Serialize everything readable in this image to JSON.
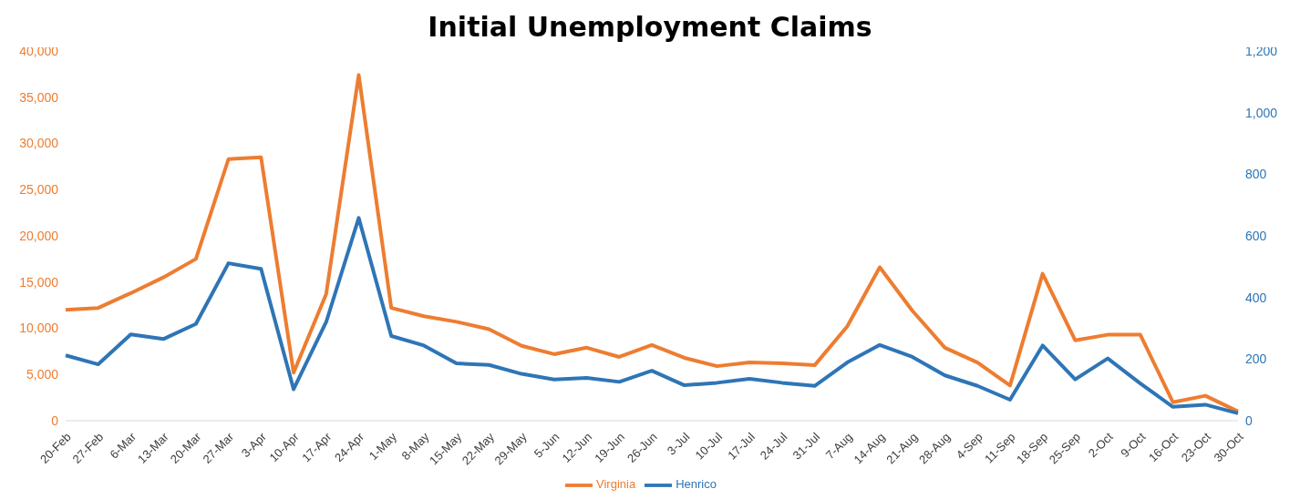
{
  "chart_data": {
    "type": "line",
    "title": "Initial Unemployment Claims",
    "categories": [
      "20-Feb",
      "27-Feb",
      "6-Mar",
      "13-Mar",
      "20-Mar",
      "27-Mar",
      "3-Apr",
      "10-Apr",
      "17-Apr",
      "24-Apr",
      "1-May",
      "8-May",
      "15-May",
      "22-May",
      "29-May",
      "5-Jun",
      "12-Jun",
      "19-Jun",
      "26-Jun",
      "3-Jul",
      "10-Jul",
      "17-Jul",
      "24-Jul",
      "31-Jul",
      "7-Aug",
      "14-Aug",
      "21-Aug",
      "28-Aug",
      "4-Sep",
      "11-Sep",
      "18-Sep",
      "25-Sep",
      "2-Oct",
      "9-Oct",
      "16-Oct",
      "23-Oct",
      "30-Oct"
    ],
    "series": [
      {
        "name": "Virginia",
        "color": "#ed7d31",
        "values": [
          12000,
          12200,
          13800,
          15500,
          17500,
          28300,
          28500,
          5200,
          13700,
          37400,
          12200,
          11300,
          10700,
          9900,
          8100,
          7200,
          7900,
          6900,
          8200,
          6800,
          5900,
          6300,
          6200,
          6000,
          10200,
          16600,
          11900,
          7900,
          6300,
          3800,
          15900,
          8700,
          9300,
          9300,
          2000,
          2700,
          1000
        ]
      },
      {
        "name": "Henrico",
        "color": "#2e75b6",
        "axis": "y2",
        "values": [
          212,
          183,
          280,
          265,
          314,
          511,
          493,
          102,
          320,
          658,
          275,
          244,
          186,
          181,
          152,
          134,
          139,
          126,
          162,
          115,
          123,
          136,
          123,
          113,
          189,
          246,
          207,
          147,
          113,
          68,
          244,
          134,
          202,
          121,
          45,
          52,
          24
        ]
      }
    ],
    "ylim": [
      0,
      40000
    ],
    "yticks": [
      0,
      {
        "value": 5000,
        "label": "5,000"
      },
      {
        "value": 10000,
        "label": "10,000"
      },
      {
        "value": 15000,
        "label": "15,000"
      },
      {
        "value": 20000,
        "label": "20,000"
      },
      {
        "value": 25000,
        "label": "25,000"
      },
      {
        "value": 30000,
        "label": "30,000"
      },
      {
        "value": 35000,
        "label": "35,000"
      },
      {
        "value": 40000,
        "label": "40,000"
      }
    ],
    "y2lim": [
      0,
      1200
    ],
    "y2ticks": [
      0,
      200,
      400,
      600,
      800,
      {
        "value": 1000,
        "label": "1,000"
      },
      {
        "value": 1200,
        "label": "1,200"
      }
    ],
    "grid": false,
    "legend": "bottom",
    "marker": "none",
    "line_style": "solid"
  }
}
